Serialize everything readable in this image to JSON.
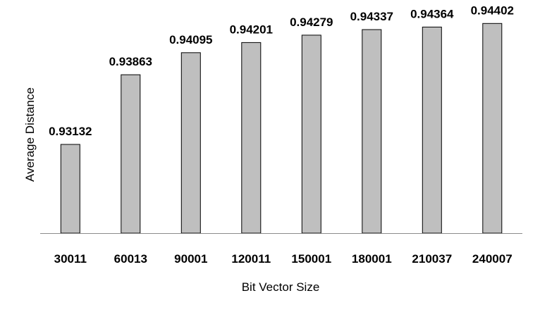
{
  "chart_data": {
    "type": "bar",
    "title": "",
    "xlabel": "Bit Vector Size",
    "ylabel": "Average Distance",
    "categories": [
      "30011",
      "60013",
      "90001",
      "120011",
      "150001",
      "180001",
      "210037",
      "240007"
    ],
    "values": [
      0.93132,
      0.93863,
      0.94095,
      0.94201,
      0.94279,
      0.94337,
      0.94364,
      0.94402
    ],
    "data_labels": [
      "0.93132",
      "0.93863",
      "0.94095",
      "0.94201",
      "0.94279",
      "0.94337",
      "0.94364",
      "0.94402"
    ],
    "ylim": [
      0.922,
      0.945
    ],
    "grid": false,
    "legend": "none",
    "y_axis_visible": false,
    "colors": {
      "bar_fill": "#bfbfbf",
      "bar_stroke": "#000000",
      "axis": "#8c8c8c",
      "text": "#000000"
    }
  }
}
